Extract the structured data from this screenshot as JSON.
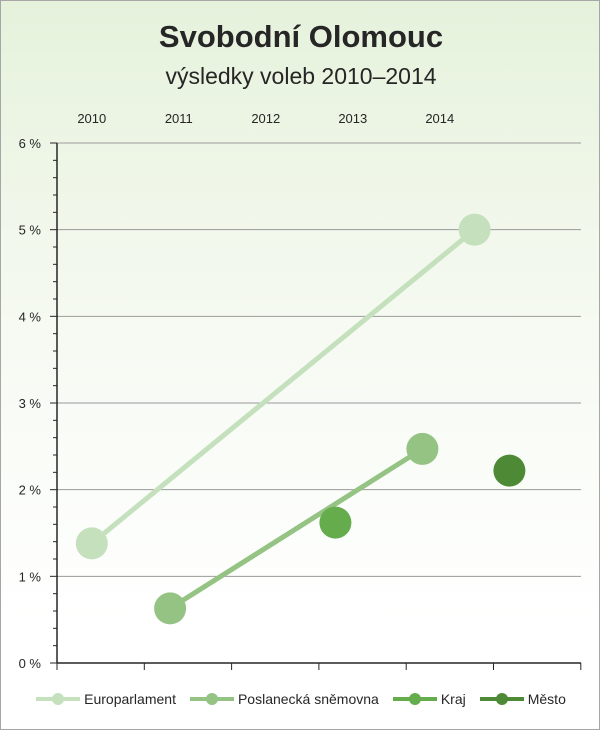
{
  "chart_data": {
    "type": "line",
    "title": "Svobodní Olomouc",
    "subtitle": "výsledky voleb 2010–2014",
    "x_tick_labels": [
      "2010",
      "2011",
      "2012",
      "2013",
      "2014"
    ],
    "y_tick_labels": [
      "0 %",
      "1 %",
      "2 %",
      "3 %",
      "4 %",
      "5 %",
      "6 %"
    ],
    "ylim": [
      0,
      6
    ],
    "xlim": [
      2009.6,
      2014.6
    ],
    "grid": true,
    "legend_position": "bottom",
    "series": [
      {
        "name": "Europarlament",
        "color": "#c4e0bc",
        "points": [
          {
            "x": 2010.0,
            "y": 1.38
          },
          {
            "x": 2014.4,
            "y": 5.0
          }
        ]
      },
      {
        "name": "Poslanecká sněmovna",
        "color": "#94c383",
        "points": [
          {
            "x": 2010.9,
            "y": 0.63
          },
          {
            "x": 2013.8,
            "y": 2.47
          }
        ]
      },
      {
        "name": "Kraj",
        "color": "#64ac4c",
        "points": [
          {
            "x": 2012.8,
            "y": 1.62
          }
        ]
      },
      {
        "name": "Město",
        "color": "#4e8a36",
        "points": [
          {
            "x": 2014.8,
            "y": 2.22
          }
        ]
      }
    ]
  }
}
